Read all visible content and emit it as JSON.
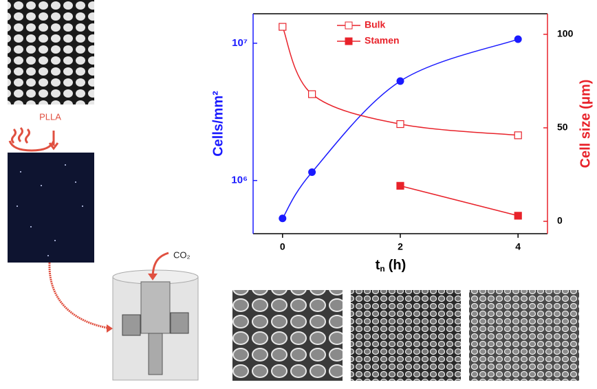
{
  "figure": {
    "material": "PLLA",
    "gas": "CO₂"
  },
  "chart_data": {
    "type": "scatter",
    "xlim": [
      -0.5,
      4.5
    ],
    "xticks": [
      0,
      2,
      4
    ],
    "ylim": [
      410000,
      16400000
    ],
    "yscale": "log",
    "yticks": [
      {
        "value": 1000000,
        "label": "10⁶"
      },
      {
        "value": 10000000,
        "label": "10⁷"
      }
    ],
    "y2lim": [
      -6.6,
      111
    ],
    "y2ticks": [
      0,
      50,
      100
    ],
    "x_label": "t",
    "x_label_sub": "n",
    "x_label_unit": "(h)",
    "y_label": "Cells/mm²",
    "y2_label": "Cell size (μm)",
    "series": [
      {
        "x": [
          0,
          0.5,
          2,
          4
        ],
        "values": [
          530000,
          1150000,
          5300000,
          10700000
        ],
        "color": "#1a1aff",
        "marker": "circle",
        "fit": true
      },
      {
        "name": "Bulk",
        "axis": "y2",
        "x": [
          0,
          0.5,
          2,
          4
        ],
        "values": [
          104,
          68,
          52,
          46
        ],
        "color": "#e8222a",
        "marker": "open-square",
        "fit": true
      },
      {
        "name": "Stamen",
        "axis": "y2",
        "x": [
          2,
          4
        ],
        "values": [
          19,
          3
        ],
        "color": "#e8222a",
        "marker": "square"
      }
    ]
  }
}
